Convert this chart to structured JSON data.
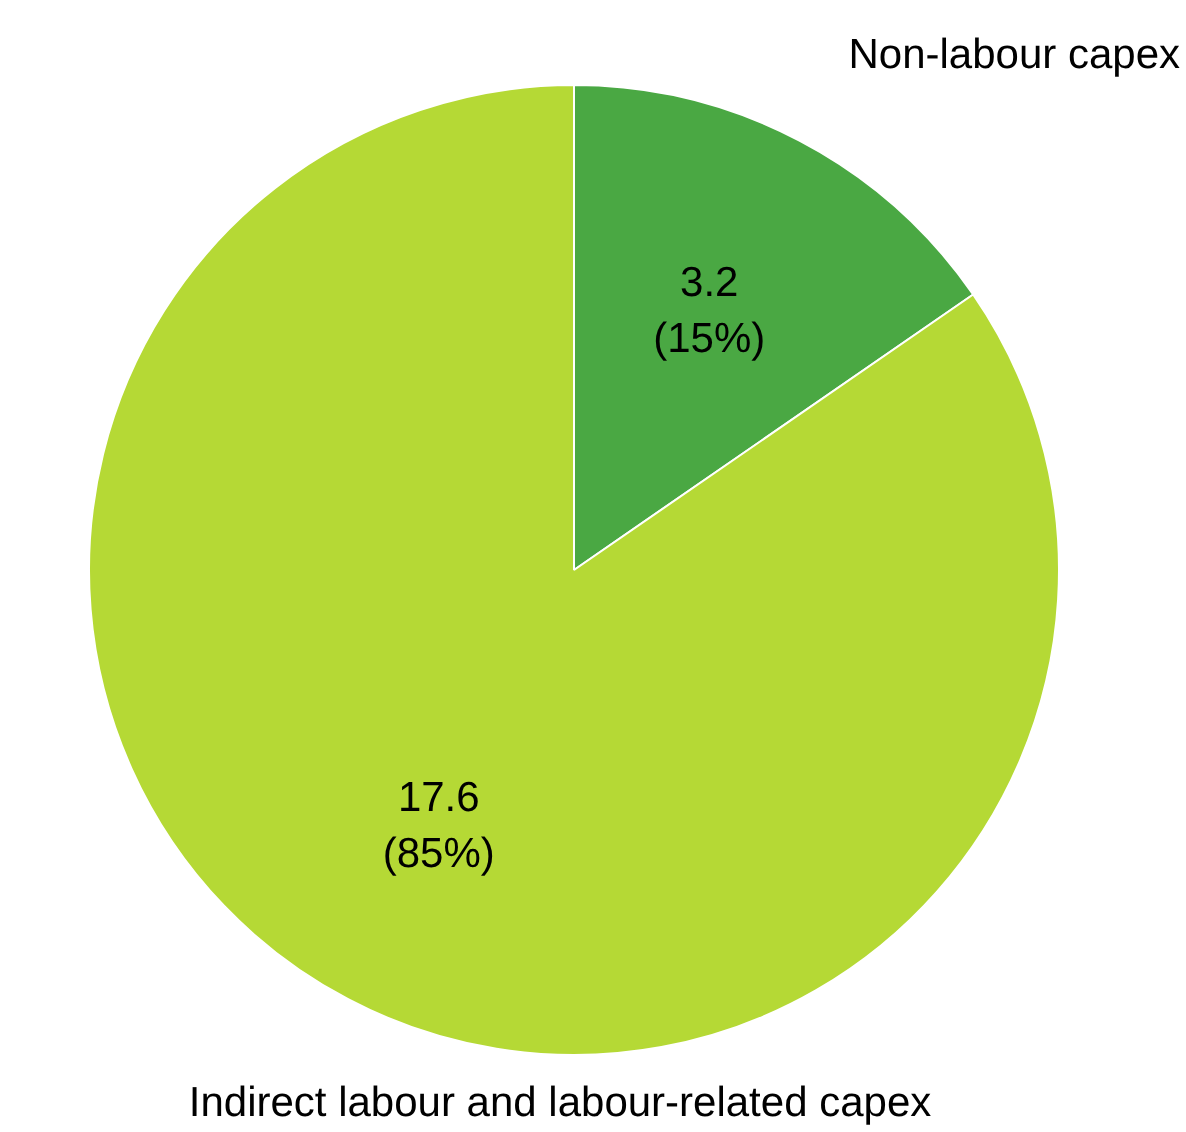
{
  "chart_data": {
    "type": "pie",
    "categories": [
      "Non-labour capex",
      "Indirect labour and labour-related capex"
    ],
    "values": [
      3.2,
      17.6
    ],
    "colors": [
      "#4aa843",
      "#b5d935"
    ],
    "value_labels": [
      "3.2 (15%)",
      "17.6 (85%)"
    ],
    "legend": false
  }
}
